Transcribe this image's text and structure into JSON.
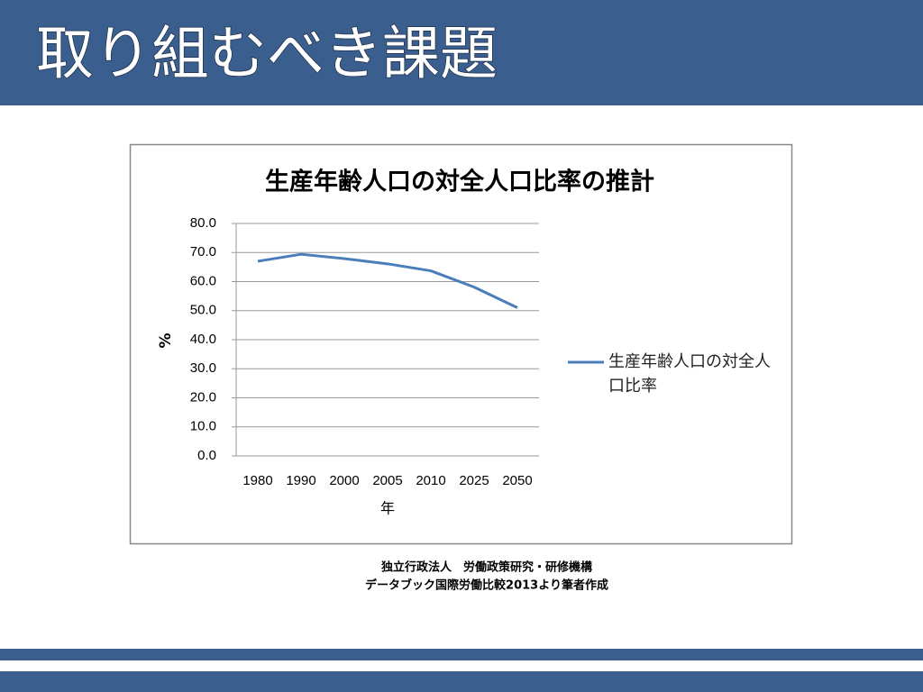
{
  "header": {
    "title": "取り組むべき課題"
  },
  "chart_data": {
    "type": "line",
    "title": "生産年齢人口の対全人口比率の推計",
    "x_label": "年",
    "y_label": "%",
    "categories": [
      "1980",
      "1990",
      "2000",
      "2005",
      "2010",
      "2025",
      "2050"
    ],
    "series": [
      {
        "name": "生産年齢人口の対全人口比率",
        "color": "#4a7ebb",
        "values": [
          67.0,
          69.4,
          67.9,
          66.1,
          63.7,
          58.1,
          51.0
        ]
      }
    ],
    "ylim": [
      0,
      80
    ],
    "yticks": [
      {
        "value": 0,
        "label": "0.0"
      },
      {
        "value": 10,
        "label": "10.0"
      },
      {
        "value": 20,
        "label": "20.0"
      },
      {
        "value": 30,
        "label": "30.0"
      },
      {
        "value": 40,
        "label": "40.0"
      },
      {
        "value": 50,
        "label": "50.0"
      },
      {
        "value": 60,
        "label": "60.0"
      },
      {
        "value": 70,
        "label": "70.0"
      },
      {
        "value": 80,
        "label": "80.0"
      }
    ],
    "grid": true,
    "legend": "right"
  },
  "source": [
    "独立行政法人　労働政策研究・研修機構",
    "データブック国際労働比較2013より筆者作成"
  ]
}
